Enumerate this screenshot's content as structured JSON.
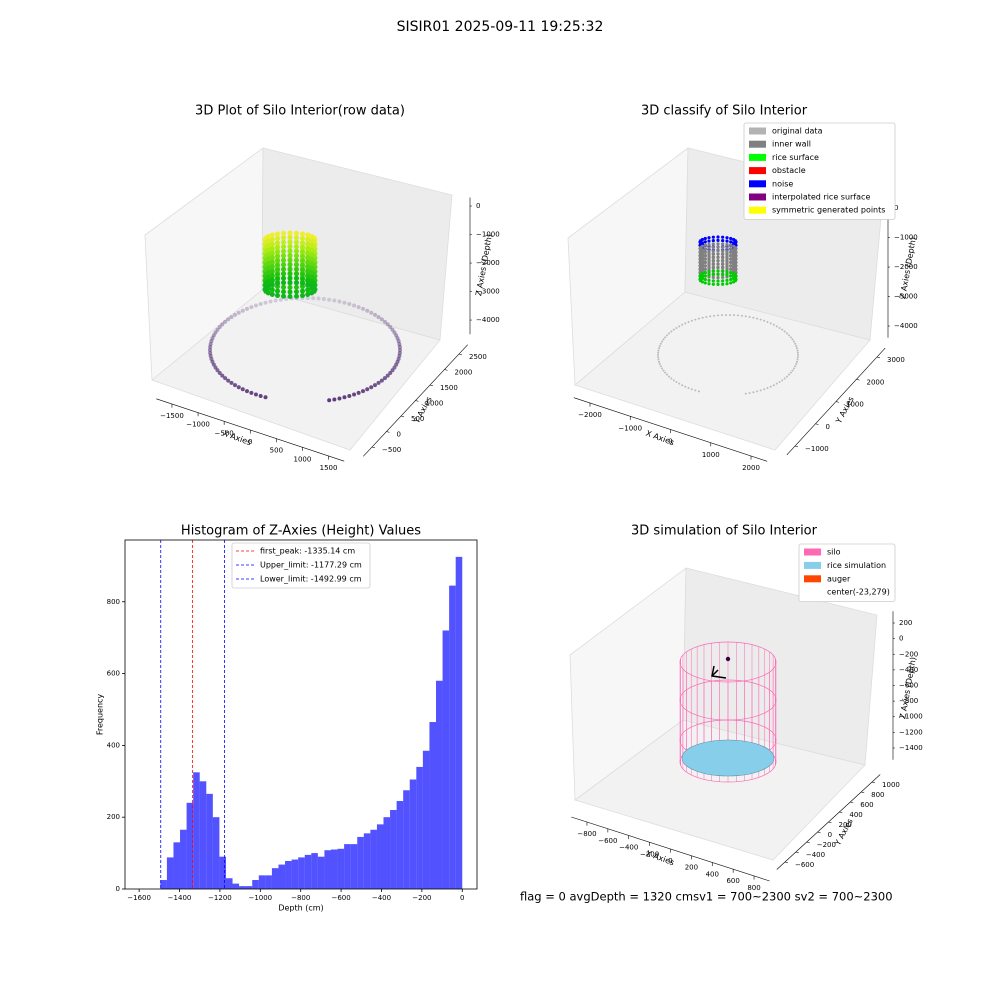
{
  "title": "SISIR01 2025-09-11 19:25:32",
  "footer": "flag = 0     avgDepth = 1320 cmsv1 = 700~2300  sv2 = 700~2300",
  "chart_data": [
    {
      "type": "scatter3d",
      "title": "3D Plot of Silo Interior(row data)",
      "xlabel": "X Axies",
      "ylabel": "Y Axies",
      "zlabel": "Z Axies (Depth)",
      "xlim": [
        -1800,
        1800
      ],
      "ylim": [
        -800,
        2800
      ],
      "zlim": [
        -4500,
        300
      ],
      "xticks": [
        {
          "value": -1500,
          "label": "−1500"
        },
        {
          "value": -1000,
          "label": "−1000"
        },
        {
          "value": -500,
          "label": "−500"
        },
        0,
        500,
        1000,
        1500
      ],
      "yticks": [
        {
          "value": -500,
          "label": "−500"
        },
        0,
        500,
        1000,
        1500,
        2000,
        2500
      ],
      "zticks": [
        0,
        {
          "value": -1000,
          "label": "−1000"
        },
        {
          "value": -2000,
          "label": "−2000"
        },
        {
          "value": -3000,
          "label": "−3000"
        },
        {
          "value": -4000,
          "label": "−4000"
        }
      ]
    },
    {
      "type": "histogram",
      "title": "Histogram of Z-Axies (Height) Values",
      "xlabel": "Depth (cm)",
      "ylabel": "Frequency",
      "color": "#0000ff",
      "bins": [
        -1495,
        -1462.5,
        -1430,
        -1397.5,
        -1365,
        -1332.5,
        -1300,
        -1267.5,
        -1235,
        -1202.5,
        -1170,
        -1137.5,
        -1105,
        -1072.5,
        -1040,
        -1007.5,
        -975,
        -942.5,
        -910,
        -877.5,
        -845,
        -812.5,
        -780,
        -747.5,
        -715,
        -682.5,
        -650,
        -617.5,
        -585,
        -552.5,
        -520,
        -487.5,
        -455,
        -422.5,
        -390,
        -357.5,
        -325,
        -292.5,
        -260,
        -227.5,
        -195,
        -162.5,
        -130,
        -97.5,
        -65,
        -32.5,
        0
      ],
      "counts": [
        25,
        88,
        130,
        165,
        240,
        325,
        300,
        265,
        200,
        90,
        30,
        15,
        8,
        8,
        25,
        38,
        38,
        58,
        68,
        78,
        82,
        88,
        95,
        100,
        90,
        108,
        110,
        112,
        125,
        125,
        145,
        155,
        165,
        180,
        200,
        220,
        245,
        275,
        305,
        340,
        385,
        465,
        580,
        720,
        845,
        925
      ],
      "vlines": [
        {
          "name": "first_peak: -1335.14 cm",
          "value": -1335.14,
          "color": "#ff0000"
        },
        {
          "name": "Upper_limit: -1177.29 cm",
          "value": -1177.29,
          "color": "#0000ff"
        },
        {
          "name": "Lower_limit: -1492.99 cm",
          "value": -1492.99,
          "color": "#0000ff"
        }
      ],
      "xlim": [
        -1670,
        73
      ],
      "ylim": [
        0,
        972
      ],
      "xticks": [
        {
          "value": -1600,
          "label": "−1600"
        },
        {
          "value": -1400,
          "label": "−1400"
        },
        {
          "value": -1200,
          "label": "−1200"
        },
        {
          "value": -1000,
          "label": "−1000"
        },
        {
          "value": -800,
          "label": "−800"
        },
        {
          "value": -600,
          "label": "−600"
        },
        {
          "value": -400,
          "label": "−400"
        },
        {
          "value": -200,
          "label": "−200"
        },
        0
      ],
      "yticks": [
        0,
        200,
        400,
        600,
        800
      ],
      "legend": "upper center"
    },
    {
      "type": "scatter3d",
      "title": "3D classify of Silo Interior",
      "xlabel": "X Axies",
      "ylabel": "Y Axies",
      "zlabel": "Z Axies (Depth)",
      "xlim": [
        -2400,
        2400
      ],
      "ylim": [
        -1400,
        3400
      ],
      "zlim": [
        -4400,
        300
      ],
      "xticks": [
        {
          "value": -2000,
          "label": "−2000"
        },
        {
          "value": -1000,
          "label": "−1000"
        },
        0,
        1000,
        2000
      ],
      "yticks": [
        {
          "value": -1000,
          "label": "−1000"
        },
        0,
        1000,
        2000,
        3000
      ],
      "zticks": [
        0,
        {
          "value": -1000,
          "label": "−1000"
        },
        {
          "value": -2000,
          "label": "−2000"
        },
        {
          "value": -3000,
          "label": "−3000"
        },
        {
          "value": -4000,
          "label": "−4000"
        }
      ],
      "legend_entries": [
        {
          "name": "original data",
          "color": "#b3b3b3"
        },
        {
          "name": "inner wall",
          "color": "#808080"
        },
        {
          "name": "rice surface",
          "color": "#00ff00"
        },
        {
          "name": "obstacle",
          "color": "#ff0000"
        },
        {
          "name": "noise",
          "color": "#0000ff"
        },
        {
          "name": "interpolated rice surface",
          "color": "#800080"
        },
        {
          "name": "symmetric generated points",
          "color": "#ffff00"
        }
      ]
    },
    {
      "type": "scatter3d",
      "title": "3D simulation of Silo Interior",
      "xlabel": "X Axies",
      "ylabel": "Y Axies",
      "zlabel": "Z Axies (Depth)",
      "xlim": [
        -950,
        950
      ],
      "ylim": [
        -750,
        1150
      ],
      "zlim": [
        -1550,
        350
      ],
      "xticks": [
        {
          "value": -800,
          "label": "−800"
        },
        {
          "value": -600,
          "label": "−600"
        },
        {
          "value": -400,
          "label": "−400"
        },
        {
          "value": -200,
          "label": "−200"
        },
        0,
        200,
        400,
        600,
        800
      ],
      "yticks": [
        {
          "value": -600,
          "label": "−600"
        },
        {
          "value": -400,
          "label": "−400"
        },
        {
          "value": -200,
          "label": "−200"
        },
        0,
        200,
        400,
        600,
        800,
        1000
      ],
      "zticks": [
        200,
        0,
        {
          "value": -200,
          "label": "−200"
        },
        {
          "value": -400,
          "label": "−400"
        },
        {
          "value": -600,
          "label": "−600"
        },
        {
          "value": -800,
          "label": "−800"
        },
        {
          "value": -1000,
          "label": "−1000"
        },
        {
          "value": -1200,
          "label": "−1200"
        },
        {
          "value": -1400,
          "label": "−1400"
        }
      ],
      "legend_entries": [
        {
          "name": "silo",
          "color": "#ff69b4"
        },
        {
          "name": "rice simulation",
          "color": "#87ceeb"
        },
        {
          "name": "auger",
          "color": "#ff4500"
        },
        {
          "name": "center(-23,279)",
          "color": "#ffffff"
        }
      ]
    }
  ]
}
